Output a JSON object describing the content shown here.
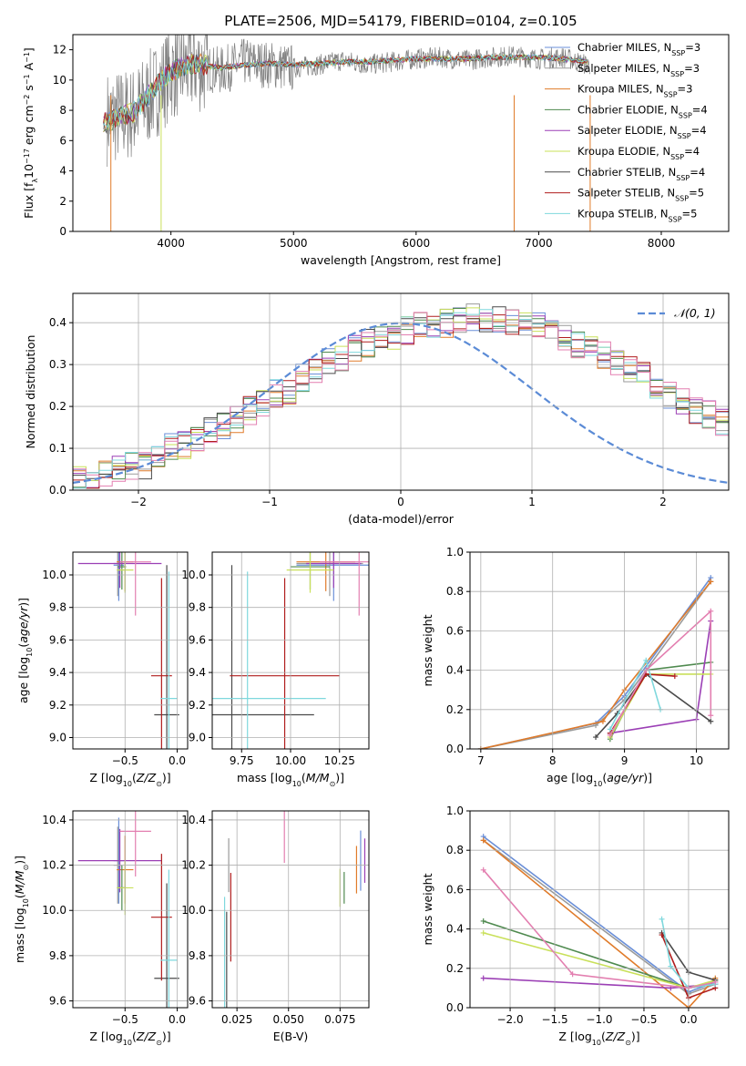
{
  "figure": {
    "title": "PLATE=2506, MJD=54179, FIBERID=0104, z=0.105"
  },
  "legend": {
    "entries": [
      {
        "label": "Chabrier MILES, N",
        "sub": "SSP",
        "suffix": "=3",
        "color": "#6a8fd8"
      },
      {
        "label": "Salpeter MILES, N",
        "sub": "SSP",
        "suffix": "=3",
        "color": "#9a9a9a"
      },
      {
        "label": "Kroupa MILES, N",
        "sub": "SSP",
        "suffix": "=3",
        "color": "#e07b2a"
      },
      {
        "label": "Chabrier ELODIE, N",
        "sub": "SSP",
        "suffix": "=4",
        "color": "#4f8a4f"
      },
      {
        "label": "Salpeter ELODIE, N",
        "sub": "SSP",
        "suffix": "=4",
        "color": "#9b3fb5"
      },
      {
        "label": "Kroupa ELODIE, N",
        "sub": "SSP",
        "suffix": "=4",
        "color": "#c9e05a"
      },
      {
        "label": "Chabrier STELIB, N",
        "sub": "SSP",
        "suffix": "=4",
        "color": "#4a4a4a"
      },
      {
        "label": "Salpeter STELIB, N",
        "sub": "SSP",
        "suffix": "=5",
        "color": "#b01d1d"
      },
      {
        "label": "Kroupa STELIB, N",
        "sub": "SSP",
        "suffix": "=5",
        "color": "#7fd8dd"
      }
    ],
    "hist_legend": "𝒩(0, 1)"
  },
  "chart_data": [
    {
      "id": "spectrum",
      "type": "line",
      "title": "PLATE=2506, MJD=54179, FIBERID=0104, z=0.105",
      "xlabel": "wavelength [Angstrom, rest frame]",
      "ylabel": "Flux [f_λ 10^-17 erg cm^-2 s^-1 A^-1]",
      "xlim": [
        3200,
        8550
      ],
      "ylim": [
        0,
        13
      ],
      "xticks": [
        "4000",
        "5000",
        "6000",
        "7000",
        "8000"
      ],
      "yticks": [
        "0",
        "2",
        "4",
        "6",
        "8",
        "10",
        "12"
      ],
      "data_x": [
        3500,
        3700,
        3900,
        4000,
        4200,
        4400,
        4600,
        4800,
        5000,
        5200,
        5400,
        5600,
        5800,
        6000,
        6200,
        6400,
        6600,
        6800,
        7000,
        7200,
        7400
      ],
      "data_y": [
        7.5,
        7.8,
        9.5,
        10.5,
        11.0,
        10.6,
        11.2,
        11.0,
        10.8,
        11.0,
        11.3,
        11.0,
        11.2,
        11.4,
        11.5,
        11.3,
        11.5,
        11.6,
        11.4,
        11.5,
        11.0
      ],
      "model_y": [
        7.3,
        7.9,
        9.8,
        10.6,
        11.1,
        10.8,
        11.0,
        11.1,
        11.0,
        11.1,
        11.2,
        11.2,
        11.3,
        11.4,
        11.4,
        11.4,
        11.5,
        11.5,
        11.5,
        11.4,
        11.2
      ],
      "model_range": [
        3450,
        7400
      ],
      "grid": false,
      "legend_position": "top-right"
    },
    {
      "id": "residual-hist",
      "type": "line",
      "xlabel": "(data-model)/error",
      "ylabel": "Normed distribution",
      "xlim": [
        -2.5,
        2.5
      ],
      "ylim": [
        0,
        0.47
      ],
      "xticks": [
        "−2",
        "−1",
        "0",
        "1",
        "2"
      ],
      "yticks": [
        "0.0",
        "0.1",
        "0.2",
        "0.3",
        "0.4"
      ],
      "bin_width": 0.1,
      "grid": true,
      "legend_position": "top-right",
      "base_values": [
        0.03,
        0.03,
        0.04,
        0.05,
        0.06,
        0.06,
        0.08,
        0.1,
        0.11,
        0.12,
        0.14,
        0.15,
        0.17,
        0.19,
        0.21,
        0.23,
        0.24,
        0.27,
        0.29,
        0.31,
        0.32,
        0.34,
        0.35,
        0.36,
        0.37,
        0.38,
        0.39,
        0.4,
        0.4,
        0.41,
        0.41,
        0.41,
        0.41,
        0.4,
        0.4,
        0.39,
        0.38,
        0.37,
        0.35,
        0.34,
        0.32,
        0.3,
        0.29,
        0.27,
        0.25,
        0.23,
        0.21,
        0.19,
        0.18,
        0.16,
        0.14,
        0.13,
        0.11,
        0.1,
        0.08,
        0.07,
        0.06,
        0.05,
        0.04,
        0.04
      ],
      "base_x_start": -2.5
    },
    {
      "id": "age-vs-Z",
      "type": "scatter",
      "xlabel": "Z [log10(Z/Z⊙)]",
      "ylabel": "age  [log10(age/yr)]",
      "xlim": [
        -1.0,
        0.1
      ],
      "ylim": [
        8.93,
        10.14
      ],
      "xticks": [
        "−0.5",
        "0.0"
      ],
      "yticks": [
        "9.0",
        "9.2",
        "9.4",
        "9.6",
        "9.8",
        "10.0"
      ],
      "grid": true
    },
    {
      "id": "age-vs-mass",
      "type": "scatter",
      "xlabel": "mass [log10(M/M⊙)]",
      "xlim": [
        9.6,
        10.4
      ],
      "ylim": [
        8.93,
        10.14
      ],
      "xticks": [
        "9.75",
        "10.00",
        "10.25"
      ],
      "yticks": [
        "9.0",
        "9.2",
        "9.4",
        "9.6",
        "9.8",
        "10.0"
      ],
      "grid": true
    },
    {
      "id": "weight-vs-age",
      "type": "line",
      "xlabel": "age  [log10(age/yr)]",
      "ylabel": "mass weight",
      "xlim": [
        6.85,
        10.45
      ],
      "ylim": [
        0,
        1.0
      ],
      "xticks": [
        "7",
        "8",
        "9",
        "10"
      ],
      "yticks": [
        "0.0",
        "0.2",
        "0.4",
        "0.6",
        "0.8",
        "1.0"
      ],
      "grid": true
    },
    {
      "id": "mass-vs-Z",
      "type": "scatter",
      "xlabel": "Z [log10(Z/Z⊙)]",
      "ylabel": "mass [log10(M/M⊙)]",
      "xlim": [
        -1.0,
        0.1
      ],
      "ylim": [
        9.57,
        10.44
      ],
      "xticks": [
        "−0.5",
        "0.0"
      ],
      "yticks": [
        "9.6",
        "9.8",
        "10.0",
        "10.2",
        "10.4"
      ],
      "grid": true
    },
    {
      "id": "mass-vs-ebv",
      "type": "scatter",
      "xlabel": "E(B-V)",
      "xlim": [
        0.013,
        0.089
      ],
      "ylim": [
        9.57,
        10.44
      ],
      "xticks": [
        "0.025",
        "0.050",
        "0.075"
      ],
      "yticks": [
        "9.6",
        "9.8",
        "10.0",
        "10.2",
        "10.4"
      ],
      "grid": true
    },
    {
      "id": "weight-vs-Z",
      "type": "line",
      "xlabel": "Z [log10(Z/Z⊙)]",
      "ylabel": "mass weight",
      "xlim": [
        -2.45,
        0.45
      ],
      "ylim": [
        0,
        1.0
      ],
      "xticks": [
        "−2.0",
        "−1.5",
        "−1.0",
        "−0.5",
        "0.0"
      ],
      "yticks": [
        "0.0",
        "0.2",
        "0.4",
        "0.6",
        "0.8",
        "1.0"
      ],
      "grid": true
    }
  ],
  "models": [
    {
      "color": "#6a8fd8",
      "Z": -0.56,
      "Zerr": 0.05,
      "age": 10.06,
      "ageErr": 0.22,
      "mass": 10.22,
      "massErr": 0.19,
      "ebv": 0.085,
      "wAge": [
        [
          7.0,
          0.0
        ],
        [
          8.6,
          0.13
        ],
        [
          9.0,
          0.27
        ],
        [
          10.2,
          0.87
        ]
      ],
      "wZ": [
        [
          -2.3,
          0.87
        ],
        [
          0.0,
          0.08
        ],
        [
          0.3,
          0.13
        ]
      ]
    },
    {
      "color": "#9a9a9a",
      "Z": -0.57,
      "Zerr": 0.04,
      "age": 10.07,
      "ageErr": 0.2,
      "mass": 10.2,
      "massErr": 0.17,
      "ebv": 0.021,
      "wAge": [
        [
          7.0,
          0.0
        ],
        [
          8.6,
          0.12
        ],
        [
          9.0,
          0.25
        ],
        [
          10.2,
          0.85
        ]
      ],
      "wZ": [
        [
          -2.3,
          0.85
        ],
        [
          0.0,
          0.07
        ],
        [
          0.3,
          0.12
        ]
      ]
    },
    {
      "color": "#e07b2a",
      "Z": -0.5,
      "Zerr": 0.08,
      "age": 10.08,
      "ageErr": 0.18,
      "mass": 10.18,
      "massErr": 0.15,
      "ebv": 0.083,
      "wAge": [
        [
          7.0,
          0.0
        ],
        [
          8.7,
          0.14
        ],
        [
          9.0,
          0.3
        ],
        [
          10.2,
          0.85
        ]
      ],
      "wZ": [
        [
          -2.3,
          0.85
        ],
        [
          0.0,
          0.0
        ],
        [
          0.3,
          0.15
        ]
      ]
    },
    {
      "color": "#4f8a4f",
      "Z": -0.53,
      "Zerr": 0.04,
      "age": 10.05,
      "ageErr": 0.14,
      "mass": 10.1,
      "massErr": 0.1,
      "ebv": 0.077,
      "wAge": [
        [
          8.8,
          0.05
        ],
        [
          9.3,
          0.4
        ],
        [
          10.2,
          0.44
        ]
      ],
      "wZ": [
        [
          -2.3,
          0.44
        ],
        [
          0.0,
          0.1
        ],
        [
          0.3,
          0.12
        ]
      ]
    },
    {
      "color": "#9b3fb5",
      "Z": -0.55,
      "Zerr": 0.4,
      "age": 10.07,
      "ageErr": 0.15,
      "mass": 10.22,
      "massErr": 0.14,
      "ebv": 0.087,
      "wAge": [
        [
          8.8,
          0.08
        ],
        [
          10.0,
          0.15
        ],
        [
          10.2,
          0.65
        ]
      ],
      "wZ": [
        [
          -2.3,
          0.15
        ],
        [
          -0.2,
          0.1
        ],
        [
          0.3,
          0.12
        ]
      ]
    },
    {
      "color": "#c9e05a",
      "Z": -0.5,
      "Zerr": 0.08,
      "age": 10.03,
      "ageErr": 0.14,
      "mass": 10.1,
      "massErr": 0.12,
      "ebv": 0.075,
      "wAge": [
        [
          8.8,
          0.06
        ],
        [
          9.3,
          0.38
        ],
        [
          10.2,
          0.38
        ]
      ],
      "wZ": [
        [
          -2.3,
          0.38
        ],
        [
          0.0,
          0.1
        ],
        [
          0.3,
          0.14
        ]
      ]
    },
    {
      "color": "#4a4a4a",
      "Z": -0.1,
      "Zerr": 0.12,
      "age": 9.14,
      "ageErr": 0.92,
      "mass": 9.7,
      "massErr": 0.42,
      "ebv": 0.02,
      "wAge": [
        [
          8.6,
          0.06
        ],
        [
          8.9,
          0.18
        ],
        [
          9.3,
          0.38
        ],
        [
          10.2,
          0.14
        ]
      ],
      "wZ": [
        [
          -0.3,
          0.38
        ],
        [
          0.0,
          0.18
        ],
        [
          0.3,
          0.14
        ]
      ]
    },
    {
      "color": "#b01d1d",
      "Z": -0.15,
      "Zerr": 0.1,
      "age": 9.38,
      "ageErr": 0.6,
      "mass": 9.97,
      "massErr": 0.28,
      "ebv": 0.022,
      "wAge": [
        [
          8.8,
          0.08
        ],
        [
          9.3,
          0.38
        ],
        [
          9.7,
          0.37
        ]
      ],
      "wZ": [
        [
          -0.3,
          0.37
        ],
        [
          0.0,
          0.05
        ],
        [
          0.3,
          0.1
        ]
      ]
    },
    {
      "color": "#7fd8dd",
      "Z": -0.08,
      "Zerr": 0.08,
      "age": 9.24,
      "ageErr": 0.78,
      "mass": 9.78,
      "massErr": 0.4,
      "ebv": 0.019,
      "wAge": [
        [
          8.8,
          0.1
        ],
        [
          9.3,
          0.45
        ],
        [
          9.5,
          0.2
        ]
      ],
      "wZ": [
        [
          -0.3,
          0.45
        ],
        [
          -0.2,
          0.21
        ],
        [
          0.0,
          0.1
        ],
        [
          0.3,
          0.12
        ]
      ]
    },
    {
      "color": "#e37fb0",
      "Z": -0.4,
      "Zerr": 0.15,
      "age": 10.08,
      "ageErr": 0.33,
      "mass": 10.35,
      "massErr": 0.2,
      "ebv": 0.048,
      "wAge": [
        [
          8.8,
          0.07
        ],
        [
          9.3,
          0.4
        ],
        [
          10.2,
          0.7
        ],
        [
          10.2,
          0.17
        ]
      ],
      "wZ": [
        [
          -2.3,
          0.7
        ],
        [
          -1.3,
          0.17
        ],
        [
          0.0,
          0.1
        ],
        [
          0.3,
          0.13
        ]
      ]
    }
  ]
}
